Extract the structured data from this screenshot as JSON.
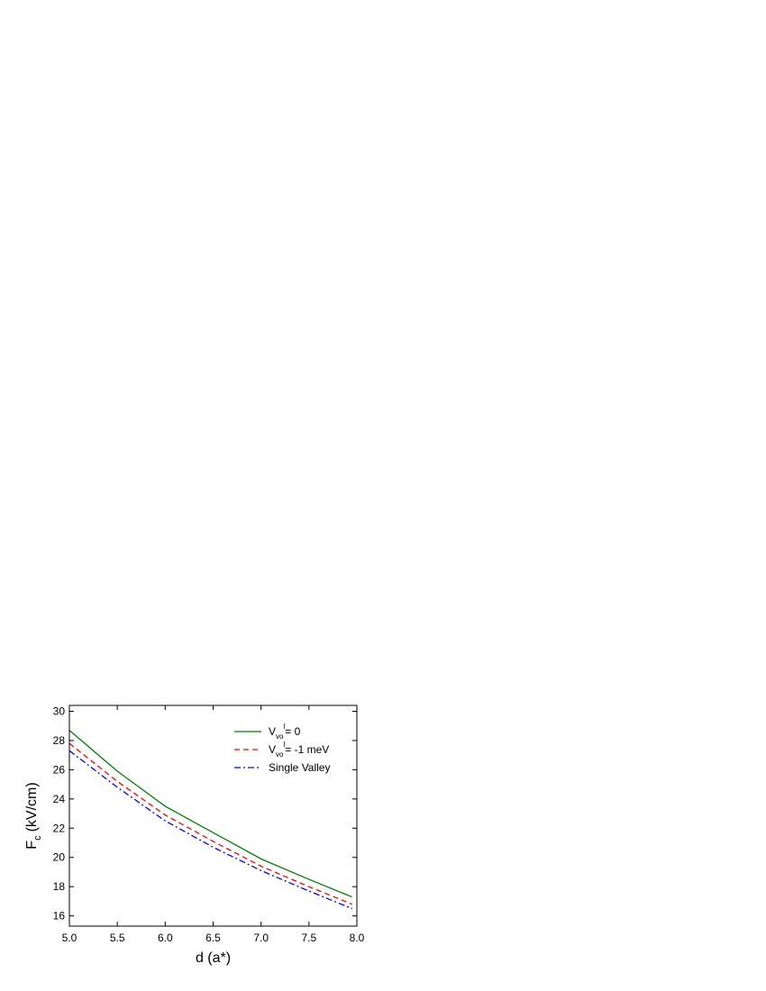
{
  "chart_data": {
    "type": "line",
    "xlabel": "d (a*)",
    "ylabel": "F",
    "ylabel_subscript": "c",
    "ylabel_suffix": "(kV/cm)",
    "x": [
      5.0,
      5.5,
      6.0,
      6.5,
      7.0,
      7.5,
      7.95
    ],
    "series": [
      {
        "name": "V",
        "subscript": "vo",
        "superscript": "l",
        "suffix": "= 0",
        "color": "#008000",
        "dash": "solid",
        "values": [
          28.7,
          25.9,
          23.5,
          21.7,
          19.9,
          18.5,
          17.3
        ]
      },
      {
        "name": "V",
        "subscript": "vo",
        "superscript": "l",
        "suffix": "= -1 meV",
        "color": "#ff0000",
        "dash": "dash",
        "values": [
          27.8,
          25.2,
          22.9,
          21.1,
          19.4,
          18.0,
          16.8
        ]
      },
      {
        "name": "Single Valley",
        "color": "#0000ff",
        "dash": "dashdot",
        "values": [
          27.3,
          24.8,
          22.5,
          20.7,
          19.1,
          17.7,
          16.5
        ]
      }
    ],
    "xlim": [
      5.0,
      8.0
    ],
    "ylim": [
      15.3,
      30.4
    ],
    "xticks": [
      {
        "value": 5,
        "label": "5.0"
      },
      {
        "value": 5.5,
        "label": "5.5"
      },
      {
        "value": 6,
        "label": "6.0"
      },
      {
        "value": 6.5,
        "label": "6.5"
      },
      {
        "value": 7,
        "label": "7.0"
      },
      {
        "value": 7.5,
        "label": "7.5"
      },
      {
        "value": 8,
        "label": "8.0"
      }
    ],
    "yticks": [
      16,
      18,
      20,
      22,
      24,
      26,
      28,
      30
    ],
    "legend": "upper right"
  }
}
